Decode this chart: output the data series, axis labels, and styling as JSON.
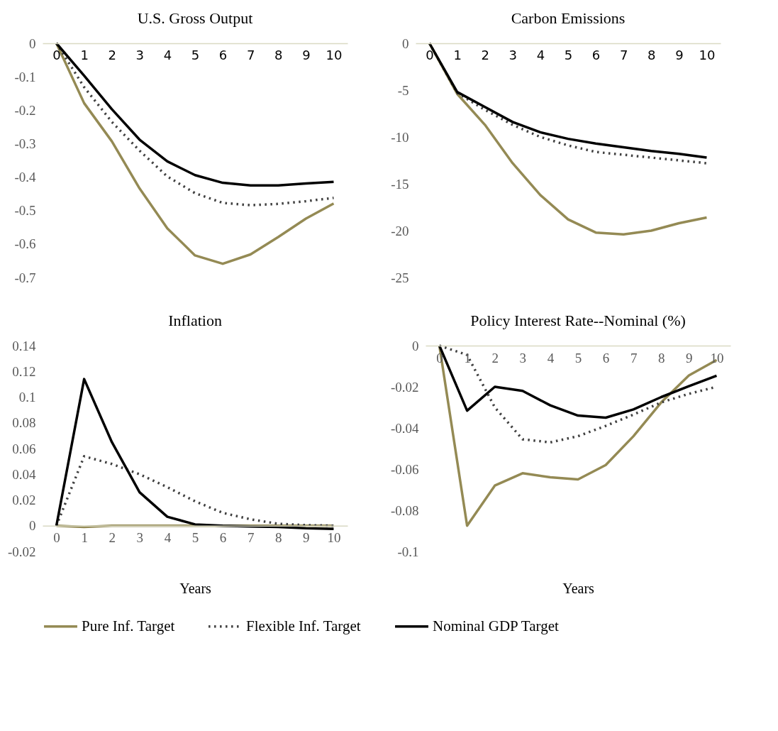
{
  "chart_data": [
    {
      "type": "line",
      "title": "U.S. Gross Output",
      "categories": [
        "0",
        "1",
        "2",
        "3",
        "4",
        "5",
        "6",
        "7",
        "8",
        "9",
        "10"
      ],
      "ylim": [
        -0.7,
        0
      ],
      "yticks": [
        0,
        -0.1,
        -0.2,
        -0.3,
        -0.4,
        -0.5,
        -0.6,
        -0.7
      ],
      "marker": "none",
      "legend": "bottom",
      "series": [
        {
          "name": "Pure Inf. Target",
          "color": "#948a54",
          "line_style": "solid",
          "values": [
            0,
            -0.179,
            -0.293,
            -0.434,
            -0.553,
            -0.634,
            -0.659,
            -0.631,
            -0.579,
            -0.524,
            -0.479
          ]
        },
        {
          "name": "Flexible Inf. Target",
          "color": "#404040",
          "line_style": "dotted",
          "values": [
            0,
            -0.131,
            -0.235,
            -0.321,
            -0.398,
            -0.448,
            -0.477,
            -0.484,
            -0.48,
            -0.472,
            -0.462
          ]
        },
        {
          "name": "Nominal GDP Target",
          "color": "#000000",
          "line_style": "solid",
          "values": [
            0,
            -0.097,
            -0.197,
            -0.288,
            -0.353,
            -0.394,
            -0.417,
            -0.425,
            -0.425,
            -0.419,
            -0.414
          ]
        }
      ]
    },
    {
      "type": "line",
      "title": "Carbon Emissions",
      "categories": [
        "0",
        "1",
        "2",
        "3",
        "4",
        "5",
        "6",
        "7",
        "8",
        "9",
        "10"
      ],
      "ylim": [
        -25,
        0
      ],
      "yticks": [
        0,
        -5,
        -10,
        -15,
        -20,
        -25
      ],
      "marker": "none",
      "series": [
        {
          "color": "#948a54",
          "line_style": "solid",
          "values": [
            0,
            -5.4,
            -8.7,
            -12.8,
            -16.2,
            -18.8,
            -20.2,
            -20.4,
            -20.0,
            -19.2,
            -18.6
          ]
        },
        {
          "color": "#404040",
          "line_style": "dotted",
          "values": [
            0,
            -5.3,
            -7.1,
            -8.7,
            -10.0,
            -10.9,
            -11.6,
            -11.9,
            -12.2,
            -12.5,
            -12.8
          ]
        },
        {
          "color": "#000000",
          "line_style": "solid",
          "values": [
            0,
            -5.2,
            -6.8,
            -8.4,
            -9.5,
            -10.2,
            -10.7,
            -11.1,
            -11.5,
            -11.8,
            -12.2
          ]
        }
      ]
    },
    {
      "type": "line",
      "title": "Inflation",
      "xlabel": "Years",
      "categories": [
        "0",
        "1",
        "2",
        "3",
        "4",
        "5",
        "6",
        "7",
        "8",
        "9",
        "10"
      ],
      "ylim": [
        -0.02,
        0.14
      ],
      "yticks": [
        0.14,
        0.12,
        0.1,
        0.08,
        0.06,
        0.04,
        0.02,
        0,
        -0.02
      ],
      "marker": "none",
      "series": [
        {
          "color": "#948a54",
          "line_style": "solid",
          "values": [
            0,
            -0.001,
            0,
            0,
            0,
            0,
            0,
            0,
            0,
            0,
            0
          ]
        },
        {
          "color": "#404040",
          "line_style": "dotted",
          "values": [
            0,
            0.054,
            0.048,
            0.04,
            0.03,
            0.019,
            0.01,
            0.005,
            0.0015,
            0.0005,
            0
          ]
        },
        {
          "color": "#000000",
          "line_style": "solid",
          "values": [
            0,
            0.114,
            0.065,
            0.026,
            0.007,
            0.001,
            0,
            -0.0005,
            -0.001,
            -0.002,
            -0.0025
          ]
        }
      ]
    },
    {
      "type": "line",
      "title": "Policy Interest Rate--Nominal (%)",
      "xlabel": "Years",
      "categories": [
        "0",
        "1",
        "2",
        "3",
        "4",
        "5",
        "6",
        "7",
        "8",
        "9",
        "10"
      ],
      "ylim": [
        -0.1,
        0
      ],
      "yticks": [
        0,
        -0.02,
        -0.04,
        -0.06,
        -0.08,
        -0.1
      ],
      "marker": "none",
      "series": [
        {
          "color": "#948a54",
          "line_style": "solid",
          "values": [
            0,
            -0.0875,
            -0.068,
            -0.062,
            -0.064,
            -0.065,
            -0.058,
            -0.044,
            -0.0276,
            -0.0145,
            -0.007
          ]
        },
        {
          "color": "#404040",
          "line_style": "dotted",
          "values": [
            0,
            -0.0045,
            -0.03,
            -0.0455,
            -0.047,
            -0.044,
            -0.039,
            -0.0335,
            -0.0276,
            -0.0234,
            -0.02
          ]
        },
        {
          "color": "#000000",
          "line_style": "solid",
          "values": [
            0,
            -0.0316,
            -0.02,
            -0.022,
            -0.029,
            -0.034,
            -0.035,
            -0.031,
            -0.025,
            -0.0197,
            -0.0146
          ]
        }
      ]
    }
  ]
}
